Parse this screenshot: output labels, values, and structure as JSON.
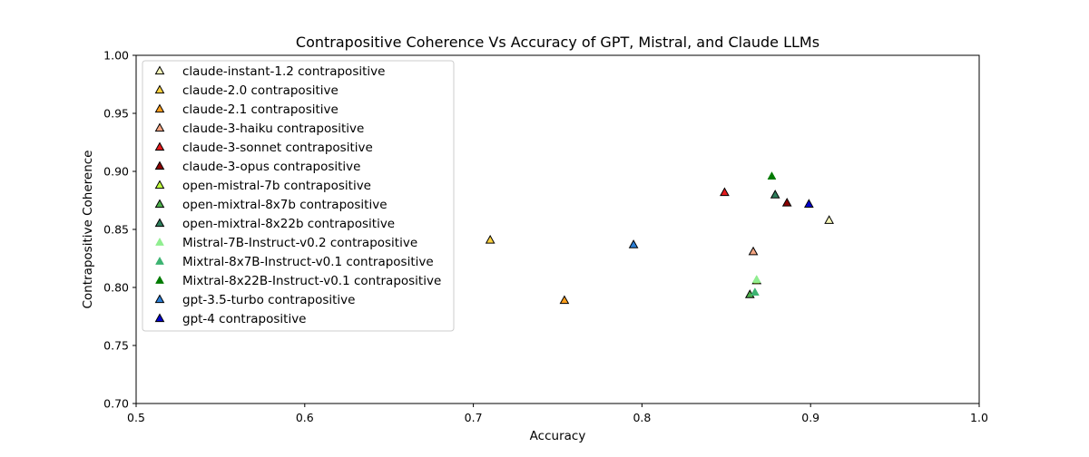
{
  "chart_data": {
    "type": "scatter",
    "title": "Contrapositive Coherence Vs Accuracy of GPT, Mistral, and Claude LLMs",
    "xlabel": "Accuracy",
    "ylabel": "Contrapositive Coherence",
    "xlim": [
      0.5,
      1.0
    ],
    "ylim": [
      0.7,
      1.0
    ],
    "xticks": [
      "0.5",
      "0.6",
      "0.7",
      "0.8",
      "0.9",
      "1.0"
    ],
    "yticks": [
      "0.70",
      "0.75",
      "0.80",
      "0.85",
      "0.90",
      "0.95",
      "1.00"
    ],
    "marker": "triangle",
    "grid": false,
    "legend_position": "top-left",
    "series": [
      {
        "name": "claude-instant-1.2 contrapositive",
        "color": "#f5f5b8",
        "outlined": true,
        "points": [
          [
            0.911,
            0.858
          ]
        ]
      },
      {
        "name": "claude-2.0 contrapositive",
        "color": "#ffd23f",
        "outlined": true,
        "points": [
          [
            0.71,
            0.841
          ]
        ]
      },
      {
        "name": "claude-2.1 contrapositive",
        "color": "#ff9f1c",
        "outlined": true,
        "points": [
          [
            0.754,
            0.789
          ]
        ]
      },
      {
        "name": "claude-3-haiku contrapositive",
        "color": "#f4a582",
        "outlined": true,
        "points": [
          [
            0.866,
            0.831
          ]
        ]
      },
      {
        "name": "claude-3-sonnet contrapositive",
        "color": "#e31a1c",
        "outlined": true,
        "points": [
          [
            0.849,
            0.882
          ]
        ]
      },
      {
        "name": "claude-3-opus contrapositive",
        "color": "#8b0000",
        "outlined": true,
        "points": [
          [
            0.886,
            0.873
          ]
        ]
      },
      {
        "name": "open-mistral-7b contrapositive",
        "color": "#c0ff3e",
        "outlined": true,
        "points": [
          [
            0.868,
            0.806
          ]
        ]
      },
      {
        "name": "open-mixtral-8x7b contrapositive",
        "color": "#4daf4a",
        "outlined": true,
        "points": [
          [
            0.864,
            0.794
          ]
        ]
      },
      {
        "name": "open-mixtral-8x22b contrapositive",
        "color": "#2e7d5b",
        "outlined": true,
        "points": [
          [
            0.879,
            0.88
          ]
        ]
      },
      {
        "name": "Mistral-7B-Instruct-v0.2 contrapositive",
        "color": "#90ee90",
        "outlined": false,
        "points": [
          [
            0.868,
            0.807
          ]
        ]
      },
      {
        "name": "Mixtral-8x7B-Instruct-v0.1 contrapositive",
        "color": "#3cb371",
        "outlined": false,
        "points": [
          [
            0.867,
            0.796
          ]
        ]
      },
      {
        "name": "Mixtral-8x22B-Instruct-v0.1 contrapositive",
        "color": "#007a00",
        "outlined": false,
        "points": [
          [
            0.877,
            0.896
          ]
        ]
      },
      {
        "name": "gpt-3.5-turbo contrapositive",
        "color": "#2c7fd6",
        "outlined": true,
        "points": [
          [
            0.795,
            0.837
          ]
        ]
      },
      {
        "name": "gpt-4 contrapositive",
        "color": "#0000cd",
        "outlined": true,
        "points": [
          [
            0.899,
            0.872
          ]
        ]
      }
    ]
  }
}
